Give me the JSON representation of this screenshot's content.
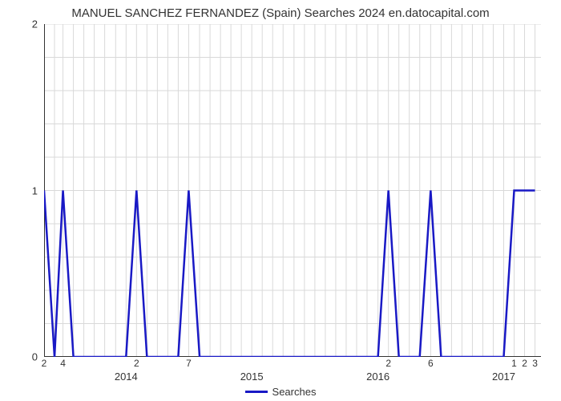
{
  "chart": {
    "type": "line",
    "title": "MANUEL SANCHEZ FERNANDEZ (Spain) Searches 2024 en.datocapital.com",
    "title_fontsize": 15,
    "title_color": "#333333",
    "background_color": "#ffffff",
    "plot_background": "#ffffff",
    "grid_color": "#d9d9d9",
    "grid_width": 1,
    "axis_color": "#333333",
    "y_axis": {
      "min": 0,
      "max": 2,
      "major_ticks": [
        0,
        1,
        2
      ],
      "minor_ticks": [
        0.2,
        0.4,
        0.6,
        0.8,
        1.2,
        1.4,
        1.6,
        1.8
      ],
      "label_fontsize": 13
    },
    "x_axis": {
      "year_positions": [
        {
          "label": "2014",
          "x": 0.165
        },
        {
          "label": "2015",
          "x": 0.418
        },
        {
          "label": "2016",
          "x": 0.672
        },
        {
          "label": "2017",
          "x": 0.925
        }
      ],
      "month_ticks": [
        {
          "label": "2",
          "x": 0.0
        },
        {
          "label": "4",
          "x": 0.038
        },
        {
          "label": "2",
          "x": 0.186
        },
        {
          "label": "7",
          "x": 0.291
        },
        {
          "label": "2",
          "x": 0.693
        },
        {
          "label": "6",
          "x": 0.778
        },
        {
          "label": "1",
          "x": 0.946
        },
        {
          "label": "2",
          "x": 0.967
        },
        {
          "label": "3",
          "x": 0.988
        }
      ],
      "x_minor_tick_positions": [
        0.0,
        0.021,
        0.038,
        0.059,
        0.08,
        0.101,
        0.122,
        0.144,
        0.165,
        0.186,
        0.207,
        0.228,
        0.249,
        0.27,
        0.291,
        0.313,
        0.334,
        0.355,
        0.376,
        0.397,
        0.418,
        0.439,
        0.46,
        0.481,
        0.503,
        0.524,
        0.545,
        0.566,
        0.587,
        0.608,
        0.629,
        0.65,
        0.672,
        0.693,
        0.714,
        0.735,
        0.756,
        0.778,
        0.799,
        0.82,
        0.841,
        0.862,
        0.883,
        0.904,
        0.925,
        0.946,
        0.967,
        0.988
      ],
      "label_fontsize": 12
    },
    "series": {
      "name": "Searches",
      "color": "#1919c5",
      "line_width": 2.5,
      "points": [
        {
          "x": 0.0,
          "y": 1
        },
        {
          "x": 0.021,
          "y": 0
        },
        {
          "x": 0.038,
          "y": 1
        },
        {
          "x": 0.059,
          "y": 0
        },
        {
          "x": 0.08,
          "y": 0
        },
        {
          "x": 0.101,
          "y": 0
        },
        {
          "x": 0.122,
          "y": 0
        },
        {
          "x": 0.144,
          "y": 0
        },
        {
          "x": 0.165,
          "y": 0
        },
        {
          "x": 0.186,
          "y": 1
        },
        {
          "x": 0.207,
          "y": 0
        },
        {
          "x": 0.228,
          "y": 0
        },
        {
          "x": 0.249,
          "y": 0
        },
        {
          "x": 0.27,
          "y": 0
        },
        {
          "x": 0.291,
          "y": 1
        },
        {
          "x": 0.313,
          "y": 0
        },
        {
          "x": 0.334,
          "y": 0
        },
        {
          "x": 0.355,
          "y": 0
        },
        {
          "x": 0.376,
          "y": 0
        },
        {
          "x": 0.397,
          "y": 0
        },
        {
          "x": 0.418,
          "y": 0
        },
        {
          "x": 0.439,
          "y": 0
        },
        {
          "x": 0.46,
          "y": 0
        },
        {
          "x": 0.481,
          "y": 0
        },
        {
          "x": 0.503,
          "y": 0
        },
        {
          "x": 0.524,
          "y": 0
        },
        {
          "x": 0.545,
          "y": 0
        },
        {
          "x": 0.566,
          "y": 0
        },
        {
          "x": 0.587,
          "y": 0
        },
        {
          "x": 0.608,
          "y": 0
        },
        {
          "x": 0.629,
          "y": 0
        },
        {
          "x": 0.65,
          "y": 0
        },
        {
          "x": 0.672,
          "y": 0
        },
        {
          "x": 0.693,
          "y": 1
        },
        {
          "x": 0.714,
          "y": 0
        },
        {
          "x": 0.735,
          "y": 0
        },
        {
          "x": 0.756,
          "y": 0
        },
        {
          "x": 0.778,
          "y": 1
        },
        {
          "x": 0.799,
          "y": 0
        },
        {
          "x": 0.82,
          "y": 0
        },
        {
          "x": 0.841,
          "y": 0
        },
        {
          "x": 0.862,
          "y": 0
        },
        {
          "x": 0.883,
          "y": 0
        },
        {
          "x": 0.904,
          "y": 0
        },
        {
          "x": 0.925,
          "y": 0
        },
        {
          "x": 0.946,
          "y": 1
        },
        {
          "x": 0.967,
          "y": 1
        },
        {
          "x": 0.988,
          "y": 1
        }
      ]
    },
    "legend": {
      "label": "Searches",
      "position": "bottom-center",
      "fontsize": 13
    }
  }
}
